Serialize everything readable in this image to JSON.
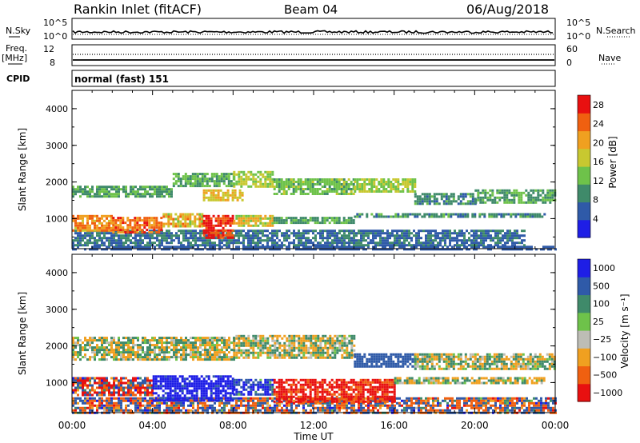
{
  "header": {
    "station": "Rankin Inlet (fitACF)",
    "beam": "Beam 04",
    "date": "06/Aug/2018"
  },
  "strip_sky": {
    "left_label": "N.Sky",
    "left_ticks": [
      "10^5",
      "10^0"
    ],
    "right_label": "N.Search",
    "right_ticks": [
      "10^5",
      "10^0"
    ]
  },
  "strip_freq": {
    "left_label_1": "Freq.",
    "left_label_2": "[MHz]",
    "left_ticks": [
      "12",
      "8"
    ],
    "right_label": "Nave",
    "right_ticks": [
      "60",
      "0"
    ]
  },
  "cpid": {
    "label": "CPID",
    "mode": "normal (fast) 151"
  },
  "colors": {
    "power": [
      "#1e1ee6",
      "#2f5aa8",
      "#3f8a6a",
      "#6ec24a",
      "#c8c830",
      "#f0a020",
      "#f06010",
      "#e81010"
    ],
    "velocity": [
      "#e81010",
      "#f06010",
      "#f0a020",
      "#bdbdb5",
      "#6ec24a",
      "#3f8a6a",
      "#2f5aa8",
      "#1e1ee6"
    ]
  },
  "chart_data": [
    {
      "type": "heatmap",
      "title": "Power",
      "xlabel": "Time UT",
      "ylabel": "Slant Range [km]",
      "xlim_hours": [
        0,
        24
      ],
      "ylim": [
        180,
        4500
      ],
      "x_ticks": [
        "00:00",
        "04:00",
        "08:00",
        "12:00",
        "16:00",
        "20:00",
        "00:00"
      ],
      "y_ticks": [
        "1000",
        "2000",
        "3000",
        "4000"
      ],
      "colorbar_label": "Power [dB]",
      "colorbar_ticks": [
        "4",
        "8",
        "12",
        "16",
        "20",
        "24",
        "28"
      ],
      "colorbar_range": [
        0,
        30
      ],
      "bands": [
        {
          "t0": 0.0,
          "t1": 24.0,
          "r_low": 180,
          "r_high": 260,
          "values": [
            4,
            6
          ]
        },
        {
          "t0": 0.0,
          "t1": 22.5,
          "r_low": 300,
          "r_high": 700,
          "values": [
            4,
            10
          ]
        },
        {
          "t0": 0.0,
          "t1": 2.0,
          "r_low": 650,
          "r_high": 1100,
          "values": [
            18,
            26
          ]
        },
        {
          "t0": 2.0,
          "t1": 4.5,
          "r_low": 650,
          "r_high": 1050,
          "values": [
            20,
            28
          ]
        },
        {
          "t0": 4.5,
          "t1": 6.5,
          "r_low": 800,
          "r_high": 1150,
          "values": [
            14,
            24
          ]
        },
        {
          "t0": 6.5,
          "t1": 8.0,
          "r_low": 500,
          "r_high": 1100,
          "values": [
            24,
            30
          ]
        },
        {
          "t0": 8.0,
          "t1": 10.0,
          "r_low": 800,
          "r_high": 1100,
          "values": [
            12,
            22
          ]
        },
        {
          "t0": 10.0,
          "t1": 14.0,
          "r_low": 900,
          "r_high": 1050,
          "values": [
            8,
            14
          ]
        },
        {
          "t0": 14.0,
          "t1": 23.5,
          "r_low": 1050,
          "r_high": 1150,
          "values": [
            6,
            12
          ]
        },
        {
          "t0": 0.0,
          "t1": 5.0,
          "r_low": 1600,
          "r_high": 1900,
          "values": [
            8,
            14
          ]
        },
        {
          "t0": 5.0,
          "t1": 8.0,
          "r_low": 1900,
          "r_high": 2250,
          "values": [
            8,
            14
          ]
        },
        {
          "t0": 6.5,
          "t1": 8.5,
          "r_low": 1500,
          "r_high": 1800,
          "values": [
            16,
            22
          ]
        },
        {
          "t0": 8.0,
          "t1": 10.0,
          "r_low": 1900,
          "r_high": 2300,
          "values": [
            12,
            18
          ]
        },
        {
          "t0": 10.0,
          "t1": 14.0,
          "r_low": 1700,
          "r_high": 2100,
          "values": [
            10,
            16
          ]
        },
        {
          "t0": 14.0,
          "t1": 17.0,
          "r_low": 1750,
          "r_high": 2100,
          "values": [
            12,
            18
          ]
        },
        {
          "t0": 17.0,
          "t1": 20.0,
          "r_low": 1400,
          "r_high": 1700,
          "values": [
            6,
            12
          ]
        },
        {
          "t0": 20.0,
          "t1": 24.0,
          "r_low": 1450,
          "r_high": 1800,
          "values": [
            8,
            14
          ]
        }
      ]
    },
    {
      "type": "heatmap",
      "title": "Velocity",
      "xlabel": "Time UT",
      "ylabel": "Slant Range [km]",
      "xlim_hours": [
        0,
        24
      ],
      "ylim": [
        180,
        4500
      ],
      "x_ticks": [
        "00:00",
        "04:00",
        "08:00",
        "12:00",
        "16:00",
        "20:00",
        "00:00"
      ],
      "y_ticks": [
        "1000",
        "2000",
        "3000",
        "4000"
      ],
      "colorbar_label": "Velocity [m s⁻¹]",
      "colorbar_ticks": [
        "1000",
        "500",
        "100",
        "25",
        "−25",
        "−100",
        "−500",
        "−1000"
      ],
      "bands": [
        {
          "t0": 0.0,
          "t1": 24.0,
          "r_low": 180,
          "r_high": 600,
          "values": [
            -200,
            200
          ]
        },
        {
          "t0": 0.0,
          "t1": 4.0,
          "r_low": 650,
          "r_high": 1150,
          "values": [
            -400,
            200
          ]
        },
        {
          "t0": 4.0,
          "t1": 8.0,
          "r_low": 500,
          "r_high": 1200,
          "values": [
            100,
            900
          ]
        },
        {
          "t0": 8.0,
          "t1": 10.0,
          "r_low": 700,
          "r_high": 1100,
          "values": [
            0,
            400
          ]
        },
        {
          "t0": 10.0,
          "t1": 16.0,
          "r_low": 500,
          "r_high": 1100,
          "values": [
            -500,
            -50
          ]
        },
        {
          "t0": 16.0,
          "t1": 23.5,
          "r_low": 1000,
          "r_high": 1150,
          "values": [
            -20,
            20
          ]
        },
        {
          "t0": 0.0,
          "t1": 8.0,
          "r_low": 1600,
          "r_high": 2250,
          "values": [
            -20,
            20
          ]
        },
        {
          "t0": 8.0,
          "t1": 14.0,
          "r_low": 1700,
          "r_high": 2300,
          "values": [
            -20,
            20
          ]
        },
        {
          "t0": 14.0,
          "t1": 17.0,
          "r_low": 1450,
          "r_high": 1800,
          "values": [
            40,
            150
          ]
        },
        {
          "t0": 17.0,
          "t1": 24.0,
          "r_low": 1400,
          "r_high": 1800,
          "values": [
            -20,
            20
          ]
        }
      ]
    }
  ]
}
